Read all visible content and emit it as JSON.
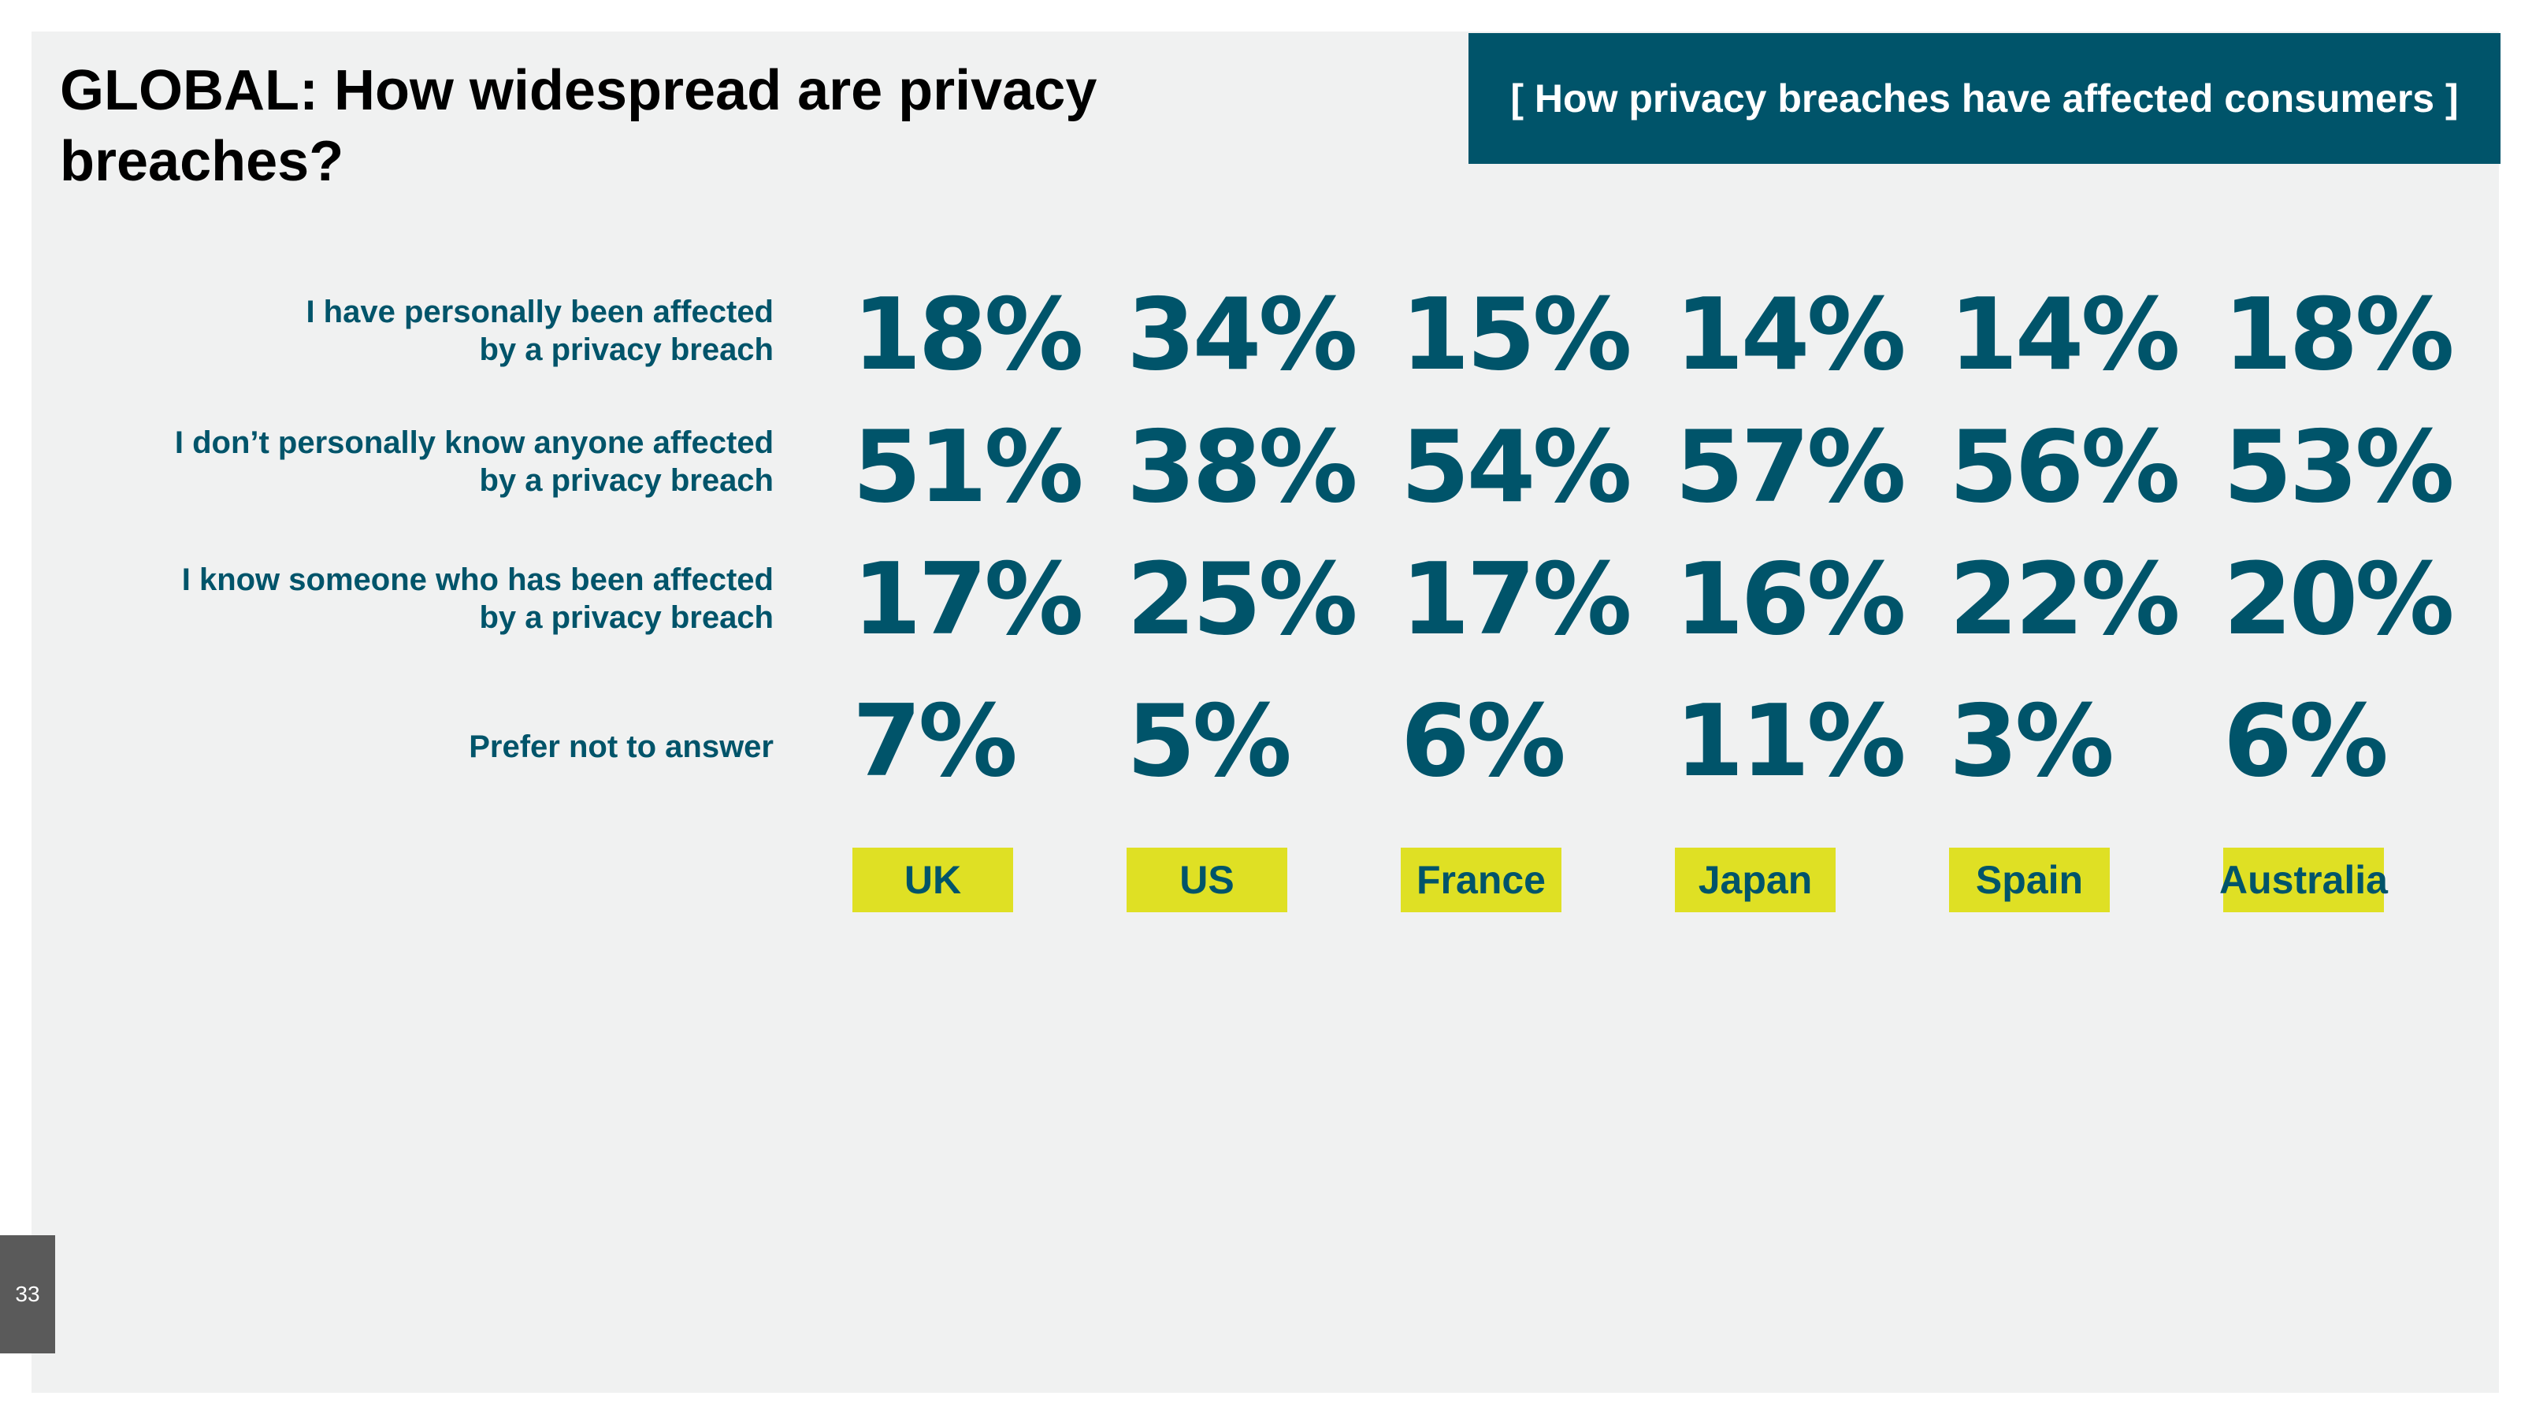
{
  "slide": {
    "title": "GLOBAL: How widespread are privacy breaches?",
    "section_banner": "[ How privacy breaches have affected consumers ]",
    "page_number": "33"
  },
  "colors": {
    "primary": "#00546a",
    "highlight": "#dfe024",
    "background": "#f0f1f1",
    "page_number_bg": "#5a5a5a"
  },
  "chart_data": {
    "type": "table",
    "title": "GLOBAL: How widespread are privacy breaches?",
    "categories": [
      "UK",
      "US",
      "France",
      "Japan",
      "Spain",
      "Australia"
    ],
    "rows": [
      {
        "label": "I have personally been affected\nby a privacy breach",
        "values": [
          "18%",
          "34%",
          "15%",
          "14%",
          "14%",
          "18%"
        ]
      },
      {
        "label": "I don’t personally know anyone affected\nby a privacy breach",
        "values": [
          "51%",
          "38%",
          "54%",
          "57%",
          "56%",
          "53%"
        ]
      },
      {
        "label": "I know someone who has been affected\nby a privacy breach",
        "values": [
          "17%",
          "25%",
          "17%",
          "16%",
          "22%",
          "20%"
        ]
      },
      {
        "label": "Prefer not to answer",
        "values": [
          "7%",
          "5%",
          "6%",
          "11%",
          "3%",
          "6%"
        ]
      }
    ]
  }
}
